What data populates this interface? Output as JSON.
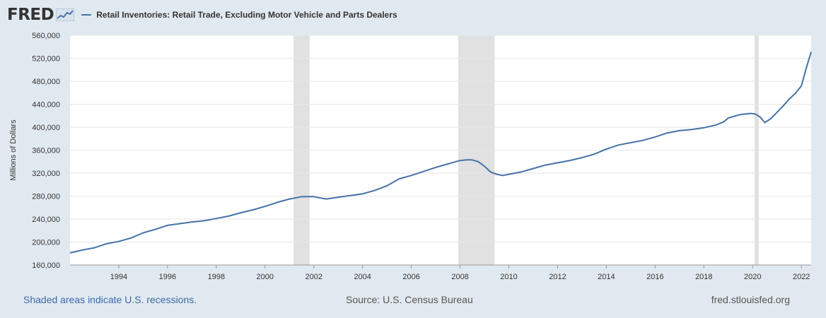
{
  "header": {
    "logo_text": "FRED",
    "legend_label": "Retail Inventories: Retail Trade, Excluding Motor Vehicle and Parts Dealers",
    "series_color": "#4572a7"
  },
  "footer": {
    "recession_note": "Shaded areas indicate U.S. recessions.",
    "source": "Source: U.S. Census Bureau",
    "site": "fred.stlouisfed.org",
    "note_color": "#3a6aa7"
  },
  "chart_data": {
    "type": "line",
    "title": "Retail Inventories: Retail Trade, Excluding Motor Vehicle and Parts Dealers",
    "ylabel": "Millions of Dollars",
    "xlabel": "",
    "xlim": [
      1992.0,
      2022.4
    ],
    "ylim": [
      160000,
      560000
    ],
    "yticks": [
      160000,
      200000,
      240000,
      280000,
      320000,
      360000,
      400000,
      440000,
      480000,
      520000,
      560000
    ],
    "ytick_labels": [
      "160,000",
      "200,000",
      "240,000",
      "280,000",
      "320,000",
      "360,000",
      "400,000",
      "440,000",
      "480,000",
      "520,000",
      "560,000"
    ],
    "xticks": [
      1994,
      1996,
      1998,
      2000,
      2002,
      2004,
      2006,
      2008,
      2010,
      2012,
      2014,
      2016,
      2018,
      2020,
      2022
    ],
    "xtick_labels": [
      "1994",
      "1996",
      "1998",
      "2000",
      "2002",
      "2004",
      "2006",
      "2008",
      "2010",
      "2012",
      "2014",
      "2016",
      "2018",
      "2020",
      "2022"
    ],
    "grid": true,
    "legend": "top-left",
    "recessions": [
      [
        2001.17,
        2001.83
      ],
      [
        2007.92,
        2009.42
      ],
      [
        2020.08,
        2020.25
      ]
    ],
    "series": [
      {
        "name": "Retail Inventories: Retail Trade, Excluding Motor Vehicle and Parts Dealers",
        "color": "#4572a7",
        "x": [
          1992.0,
          1992.5,
          1993.0,
          1993.5,
          1994.0,
          1994.5,
          1995.0,
          1995.5,
          1996.0,
          1996.5,
          1997.0,
          1997.5,
          1998.0,
          1998.5,
          1999.0,
          1999.5,
          2000.0,
          2000.5,
          2001.0,
          2001.5,
          2002.0,
          2002.5,
          2003.0,
          2003.5,
          2004.0,
          2004.5,
          2005.0,
          2005.5,
          2006.0,
          2006.5,
          2007.0,
          2007.5,
          2008.0,
          2008.25,
          2008.5,
          2008.75,
          2009.0,
          2009.25,
          2009.5,
          2009.75,
          2010.0,
          2010.5,
          2011.0,
          2011.5,
          2012.0,
          2012.5,
          2013.0,
          2013.5,
          2014.0,
          2014.5,
          2015.0,
          2015.5,
          2016.0,
          2016.5,
          2017.0,
          2017.5,
          2018.0,
          2018.5,
          2018.8,
          2019.0,
          2019.5,
          2019.9,
          2020.1,
          2020.3,
          2020.5,
          2020.75,
          2021.0,
          2021.25,
          2021.5,
          2021.75,
          2022.0,
          2022.2,
          2022.4
        ],
        "y": [
          181000,
          186000,
          190000,
          197000,
          201000,
          207000,
          216000,
          222000,
          229000,
          232000,
          235000,
          237000,
          241000,
          245000,
          251000,
          256000,
          262000,
          269000,
          275000,
          279000,
          279000,
          275000,
          278000,
          281000,
          284000,
          290000,
          298000,
          310000,
          316000,
          323000,
          330000,
          336000,
          342000,
          343000,
          343000,
          340000,
          332000,
          322000,
          318000,
          316000,
          318000,
          322000,
          328000,
          334000,
          338000,
          342000,
          347000,
          353000,
          362000,
          369000,
          373000,
          377000,
          383000,
          390000,
          394000,
          396000,
          399000,
          404000,
          409000,
          416000,
          422000,
          424000,
          423000,
          418000,
          408000,
          415000,
          426000,
          437000,
          449000,
          459000,
          472000,
          503000,
          531000
        ]
      }
    ]
  }
}
